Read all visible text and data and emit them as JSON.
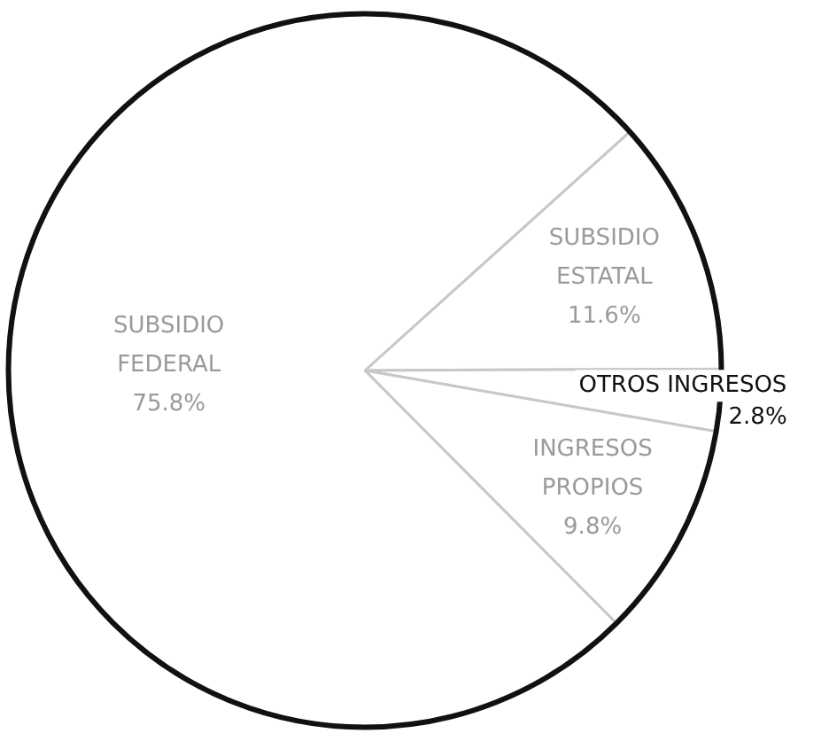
{
  "chart_data": {
    "type": "pie",
    "categories": [
      "SUBSIDIO ESTATAL",
      "OTROS INGRESOS",
      "INGRESOS PROPIOS",
      "SUBSIDIO FEDERAL"
    ],
    "values": [
      11.6,
      2.8,
      9.8,
      75.8
    ],
    "value_labels": [
      "11.6%",
      "2.8%",
      "9.8%",
      "75.8%"
    ],
    "colors": [
      "#ffffff",
      "#ffffff",
      "#ffffff",
      "#ffffff"
    ],
    "legend": false
  }
}
